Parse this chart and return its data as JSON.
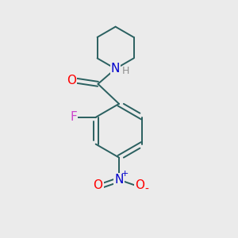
{
  "background_color": "#ebebeb",
  "bond_color": "#2a6060",
  "atom_colors": {
    "O": "#ff0000",
    "N": "#0000cc",
    "F": "#cc44cc",
    "H": "#909090",
    "C": "#000000"
  },
  "bond_width": 1.4,
  "figsize": [
    3.0,
    3.0
  ],
  "dpi": 100
}
